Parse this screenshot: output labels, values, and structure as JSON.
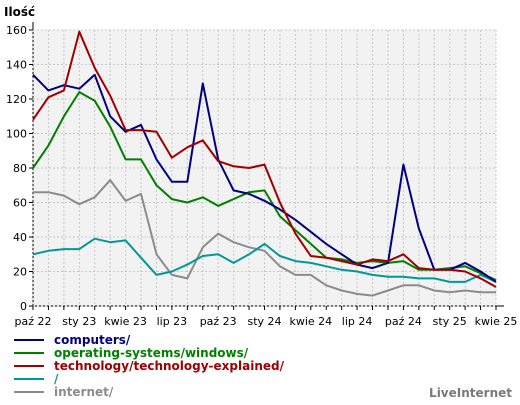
{
  "chart_data": {
    "type": "line",
    "title": "",
    "ylabel": "Ilość",
    "xlabel": "",
    "ylim": [
      0,
      160
    ],
    "yticks": [
      0,
      20,
      40,
      60,
      80,
      100,
      120,
      140,
      160
    ],
    "grid": true,
    "legend_position": "bottom-left",
    "x_tick_labels": [
      "paź 22",
      "sty 23",
      "kwie 23",
      "lip 23",
      "paź 23",
      "sty 24",
      "kwie 24",
      "lip 24",
      "paź 24",
      "sty 25",
      "kwie 25"
    ],
    "x": [
      "paź 22",
      "lis 22",
      "gru 22",
      "sty 23",
      "lut 23",
      "mar 23",
      "kwie 23",
      "maj 23",
      "cze 23",
      "lip 23",
      "sie 23",
      "wrz 23",
      "paź 23",
      "lis 23",
      "gru 23",
      "sty 24",
      "lut 24",
      "mar 24",
      "kwie 24",
      "maj 24",
      "cze 24",
      "lip 24",
      "sie 24",
      "wrz 24",
      "paź 24",
      "lis 24",
      "gru 24",
      "sty 25",
      "lut 25",
      "mar 25",
      "kwie 25"
    ],
    "series": [
      {
        "name": "computers/",
        "color": "#000080",
        "values": [
          134,
          125,
          128,
          126,
          134,
          110,
          101,
          105,
          85,
          72,
          72,
          129,
          85,
          67,
          65,
          61,
          56,
          50,
          43,
          36,
          30,
          24,
          22,
          25,
          82,
          45,
          21,
          21,
          25,
          20,
          14
        ]
      },
      {
        "name": "operating-systems/windows/",
        "color": "#008000",
        "values": [
          80,
          93,
          110,
          124,
          119,
          104,
          85,
          85,
          70,
          62,
          60,
          63,
          58,
          62,
          66,
          67,
          52,
          44,
          36,
          28,
          27,
          25,
          26,
          25,
          26,
          21,
          21,
          22,
          23,
          19,
          15
        ]
      },
      {
        "name": "technology/technology-explained/",
        "color": "#a00000",
        "values": [
          108,
          121,
          125,
          159,
          138,
          122,
          102,
          102,
          101,
          86,
          92,
          96,
          84,
          81,
          80,
          82,
          60,
          42,
          29,
          28,
          26,
          24,
          27,
          26,
          30,
          22,
          21,
          21,
          20,
          16,
          11
        ]
      },
      {
        "name": "/",
        "color": "#009999",
        "values": [
          30,
          32,
          33,
          33,
          39,
          37,
          38,
          28,
          18,
          20,
          24,
          29,
          30,
          25,
          30,
          36,
          29,
          26,
          25,
          23,
          21,
          20,
          18,
          17,
          17,
          16,
          16,
          14,
          14,
          18,
          14
        ]
      },
      {
        "name": "internet/",
        "color": "#8c8c8c",
        "values": [
          66,
          66,
          64,
          59,
          63,
          73,
          61,
          65,
          30,
          18,
          16,
          34,
          42,
          37,
          34,
          32,
          23,
          18,
          18,
          12,
          9,
          7,
          6,
          9,
          12,
          12,
          9,
          8,
          9,
          8,
          8
        ]
      }
    ]
  },
  "credit": "LiveInternet"
}
